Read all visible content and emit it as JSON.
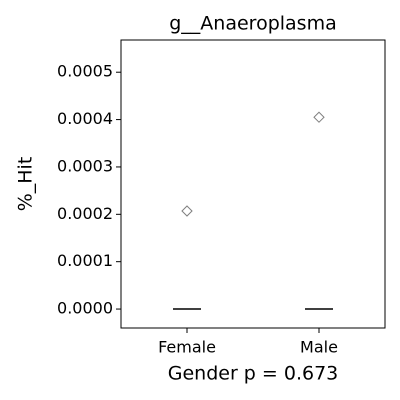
{
  "chart_data": {
    "type": "box",
    "title": "g__Anaeroplasma",
    "y_label": "%_Hit",
    "x_label": "Gender p = 0.673",
    "categories": [
      "Female",
      "Male"
    ],
    "medians": [
      0,
      0
    ],
    "outliers": [
      [
        0.000207
      ],
      [
        0.000405
      ]
    ],
    "ylim": [
      -4e-05,
      0.000568
    ],
    "yticks": [
      {
        "value": 0,
        "label": "0.0000"
      },
      {
        "value": 0.0001,
        "label": "0.0001"
      },
      {
        "value": 0.0002,
        "label": "0.0002"
      },
      {
        "value": 0.0003,
        "label": "0.0003"
      },
      {
        "value": 0.0004,
        "label": "0.0004"
      },
      {
        "value": 0.0005,
        "label": "0.0005"
      }
    ],
    "outlier_color": "#7f7f7f",
    "median_color": "#000000"
  }
}
